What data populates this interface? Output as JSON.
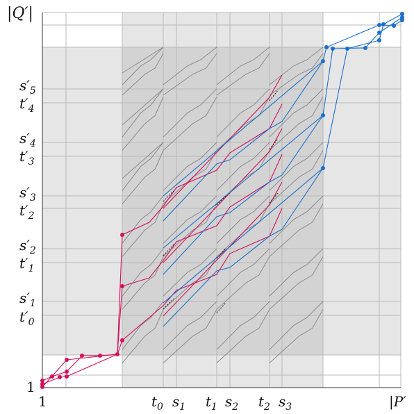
{
  "colors": {
    "red": "#d1115a",
    "blue": "#1a6fcc",
    "gray_line": "#8a8a8a",
    "grid": "#b8b8b8",
    "shade_light": "#e6e6e6",
    "shade_dark": "#d2d2d2"
  },
  "axes": {
    "x_start": "1",
    "x_end": "|P′",
    "y_start": "1",
    "y_end": "|Q′|"
  },
  "x_labels": [
    {
      "base": "t",
      "sub": "0"
    },
    {
      "base": "s",
      "sub": "1"
    },
    {
      "base": "t",
      "sub": "1"
    },
    {
      "base": "s",
      "sub": "2"
    },
    {
      "base": "t",
      "sub": "2"
    },
    {
      "base": "s",
      "sub": "3"
    }
  ],
  "y_labels": [
    {
      "base": "s′",
      "sub": "5"
    },
    {
      "base": "t′",
      "sub": "4"
    },
    {
      "base": "s′",
      "sub": "4"
    },
    {
      "base": "t′",
      "sub": "3"
    },
    {
      "base": "s′",
      "sub": "3"
    },
    {
      "base": "t′",
      "sub": "2"
    },
    {
      "base": "s′",
      "sub": "2"
    },
    {
      "base": "t′",
      "sub": "1"
    },
    {
      "base": "s′",
      "sub": "1"
    },
    {
      "base": "t′",
      "sub": "0"
    }
  ]
}
